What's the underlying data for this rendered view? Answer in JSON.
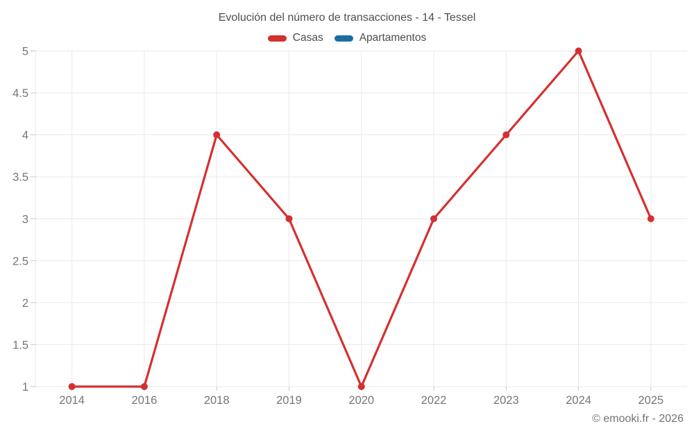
{
  "title": "Evolución del número de transacciones - 14 - Tessel",
  "legend": {
    "items": [
      {
        "label": "Casas",
        "color": "#d53030"
      },
      {
        "label": "Apartamentos",
        "color": "#1b6d9e"
      }
    ]
  },
  "footer": "© emooki.fr - 2026",
  "chart_data": {
    "type": "line",
    "title": "Evolución del número de transacciones - 14 - Tessel",
    "categories": [
      "2014",
      "2016",
      "2018",
      "2019",
      "2020",
      "2022",
      "2023",
      "2024",
      "2025"
    ],
    "series": [
      {
        "name": "Casas",
        "color": "#d53030",
        "values": [
          1,
          1,
          4,
          3,
          1,
          3,
          4,
          5,
          3
        ]
      },
      {
        "name": "Apartamentos",
        "color": "#1b6d9e",
        "values": []
      }
    ],
    "xlabel": "",
    "ylabel": "",
    "ylim": [
      1,
      5
    ],
    "yticks": [
      1,
      1.5,
      2,
      2.5,
      3,
      3.5,
      4,
      4.5,
      5
    ],
    "grid": true,
    "legend_position": "top",
    "point_radius": 5,
    "line_width": 3.2,
    "colors": {
      "grid": "#e9e9e9",
      "tick": "#c6c6c6",
      "axis_label": "#757575",
      "title": "#4d4d4d",
      "footer": "#737373"
    }
  }
}
